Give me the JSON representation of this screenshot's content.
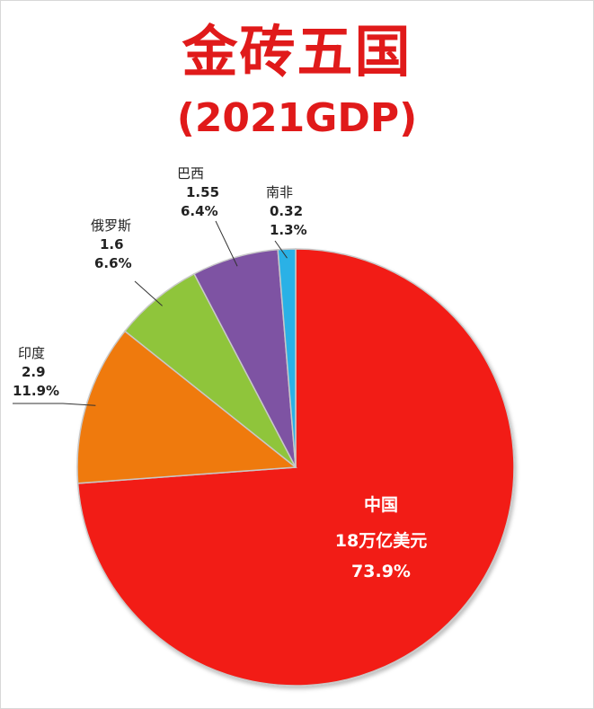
{
  "title": "金砖五国",
  "subtitle": "(2021GDP)",
  "chart_data": {
    "type": "pie",
    "title": "金砖五国",
    "subtitle": "(2021GDP)",
    "slices": [
      {
        "name": "中国",
        "value_text": "18万亿美元",
        "value": 18,
        "percent": 73.9,
        "percent_text": "73.9%",
        "color": "#f21d14"
      },
      {
        "name": "印度",
        "value_text": "2.9",
        "value": 2.9,
        "percent": 11.9,
        "percent_text": "11.9%",
        "color": "#ef7a11"
      },
      {
        "name": "俄罗斯",
        "value_text": "1.6",
        "value": 1.6,
        "percent": 6.6,
        "percent_text": "6.6%",
        "color": "#8fc53a"
      },
      {
        "name": "巴西",
        "value_text": "1.55",
        "value": 1.55,
        "percent": 6.4,
        "percent_text": "6.4%",
        "color": "#7e52a3"
      },
      {
        "name": "南非",
        "value_text": "0.32",
        "value": 0.32,
        "percent": 1.3,
        "percent_text": "1.3%",
        "color": "#29b1e6"
      }
    ]
  }
}
